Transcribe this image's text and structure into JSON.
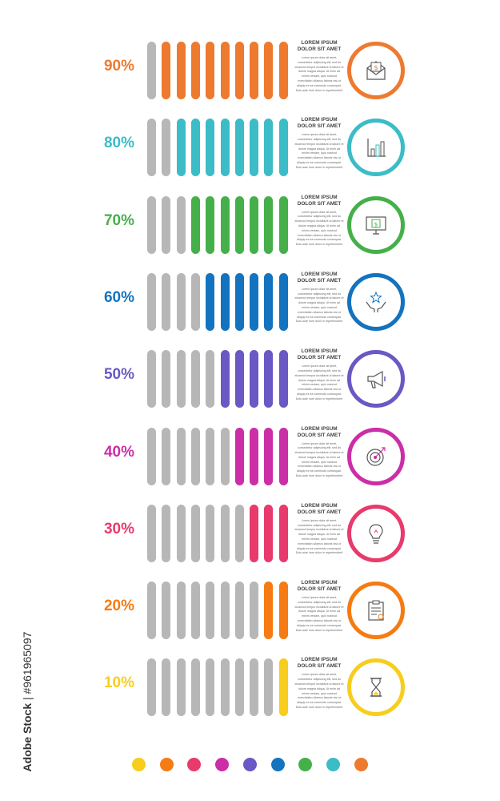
{
  "rows": [
    {
      "label": "90%",
      "value": 90,
      "color": "#ee7a2f",
      "title": "LOREM IPSUM DOLOR SIT AMET",
      "body": "Lorem ipsum dolor sit amet, consectetur adipiscing elit, sed do eiusmod tempor incididunt ut labore et dolore magna aliqua. Ut enim ad minim veniam, quis nostrud exercitation ullamco laboris nisi ut aliquip ex ea commodo consequat. Duis aute irure dolor in reprehenderit",
      "icon": "money-envelope-icon"
    },
    {
      "label": "80%",
      "value": 80,
      "color": "#3cbcc6",
      "title": "LOREM IPSUM DOLOR SIT AMET",
      "body": "Lorem ipsum dolor sit amet, consectetur adipiscing elit, sed do eiusmod tempor incididunt ut labore et dolore magna aliqua. Ut enim ad minim veniam, quis nostrud exercitation ullamco laboris nisi ut aliquip ex ea commodo consequat. Duis aute irure dolor in reprehenderit",
      "icon": "bar-chart-icon"
    },
    {
      "label": "70%",
      "value": 70,
      "color": "#45b04a",
      "title": "LOREM IPSUM DOLOR SIT AMET",
      "body": "Lorem ipsum dolor sit amet, consectetur adipiscing elit, sed do eiusmod tempor incididunt ut labore et dolore magna aliqua. Ut enim ad minim veniam, quis nostrud exercitation ullamco laboris nisi ut aliquip ex ea commodo consequat. Duis aute irure dolor in reprehenderit",
      "icon": "monitor-money-icon"
    },
    {
      "label": "60%",
      "value": 60,
      "color": "#1473be",
      "title": "LOREM IPSUM DOLOR SIT AMET",
      "body": "Lorem ipsum dolor sit amet, consectetur adipiscing elit, sed do eiusmod tempor incididunt ut labore et dolore magna aliqua. Ut enim ad minim veniam, quis nostrud exercitation ullamco laboris nisi ut aliquip ex ea commodo consequat. Duis aute irure dolor in reprehenderit",
      "icon": "hands-star-icon"
    },
    {
      "label": "50%",
      "value": 50,
      "color": "#6a58c4",
      "title": "LOREM IPSUM DOLOR SIT AMET",
      "body": "Lorem ipsum dolor sit amet, consectetur adipiscing elit, sed do eiusmod tempor incididunt ut labore et dolore magna aliqua. Ut enim ad minim veniam, quis nostrud exercitation ullamco laboris nisi ut aliquip ex ea commodo consequat. Duis aute irure dolor in reprehenderit",
      "icon": "megaphone-icon"
    },
    {
      "label": "40%",
      "value": 40,
      "color": "#cc2ea7",
      "title": "LOREM IPSUM DOLOR SIT AMET",
      "body": "Lorem ipsum dolor sit amet, consectetur adipiscing elit, sed do eiusmod tempor incididunt ut labore et dolore magna aliqua. Ut enim ad minim veniam, quis nostrud exercitation ullamco laboris nisi ut aliquip ex ea commodo consequat. Duis aute irure dolor in reprehenderit",
      "icon": "target-icon"
    },
    {
      "label": "30%",
      "value": 30,
      "color": "#e83a6c",
      "title": "LOREM IPSUM DOLOR SIT AMET",
      "body": "Lorem ipsum dolor sit amet, consectetur adipiscing elit, sed do eiusmod tempor incididunt ut labore et dolore magna aliqua. Ut enim ad minim veniam, quis nostrud exercitation ullamco laboris nisi ut aliquip ex ea commodo consequat. Duis aute irure dolor in reprehenderit",
      "icon": "lightbulb-icon"
    },
    {
      "label": "20%",
      "value": 20,
      "color": "#f57b12",
      "title": "LOREM IPSUM DOLOR SIT AMET",
      "body": "Lorem ipsum dolor sit amet, consectetur adipiscing elit, sed do eiusmod tempor incididunt ut labore et dolore magna aliqua. Ut enim ad minim veniam, quis nostrud exercitation ullamco laboris nisi ut aliquip ex ea commodo consequat. Duis aute irure dolor in reprehenderit",
      "icon": "clipboard-icon"
    },
    {
      "label": "10%",
      "value": 10,
      "color": "#f7cd1e",
      "title": "LOREM IPSUM DOLOR SIT AMET",
      "body": "Lorem ipsum dolor sit amet, consectetur adipiscing elit, sed do eiusmod tempor incididunt ut labore et dolore magna aliqua. Ut enim ad minim veniam, quis nostrud exercitation ullamco laboris nisi ut aliquip ex ea commodo consequat. Duis aute irure dolor in reprehenderit",
      "icon": "hourglass-icon"
    }
  ],
  "dots": [
    "#f7cd1e",
    "#f57b12",
    "#e83a6c",
    "#cc2ea7",
    "#6a58c4",
    "#1473be",
    "#45b04a",
    "#3cbcc6",
    "#ee7a2f"
  ],
  "credit": {
    "brand": "Adobe Stock",
    "id": "#961965097"
  }
}
